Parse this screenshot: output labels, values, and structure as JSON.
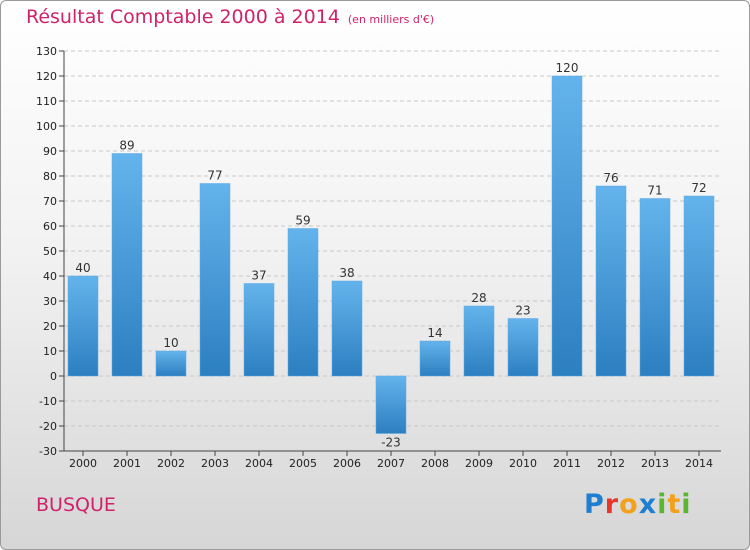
{
  "header": {
    "title": "Résultat Comptable 2000 à 2014",
    "subtitle": "(en milliers d'€)"
  },
  "footer": {
    "commune": "BUSQUE",
    "brand_letters": [
      "P",
      "r",
      "o",
      "x",
      "i",
      "t",
      "i"
    ]
  },
  "colors": {
    "title": "#d0226a",
    "bar_light": "#64b3ec",
    "bar_dark": "#2c7fc0",
    "grid": "#c8c8c8"
  },
  "chart_data": {
    "type": "bar",
    "title": "Résultat Comptable 2000 à 2014",
    "subtitle": "(en milliers d'€)",
    "categories": [
      "2000",
      "2001",
      "2002",
      "2003",
      "2004",
      "2005",
      "2006",
      "2007",
      "2008",
      "2009",
      "2010",
      "2011",
      "2012",
      "2013",
      "2014"
    ],
    "values": [
      40,
      89,
      10,
      77,
      37,
      59,
      38,
      -23,
      14,
      28,
      23,
      120,
      76,
      71,
      72
    ],
    "ylim": [
      -30,
      130
    ],
    "yticks": [
      -30,
      -20,
      -10,
      0,
      10,
      20,
      30,
      40,
      50,
      60,
      70,
      80,
      90,
      100,
      110,
      120,
      130
    ],
    "grid": true,
    "grid_style": "dashed-horizontal",
    "data_labels": true
  }
}
